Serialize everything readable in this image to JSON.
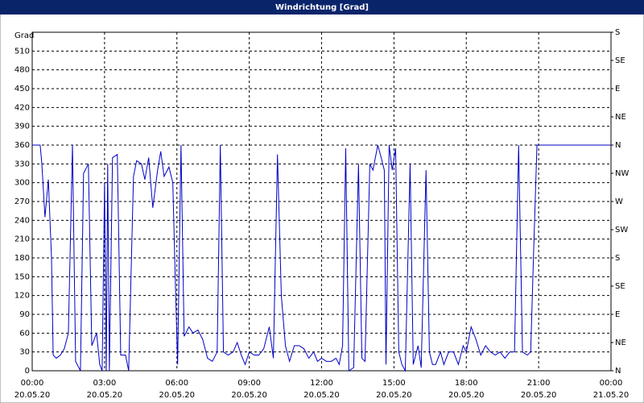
{
  "chart_data": {
    "type": "line",
    "title": "Windrichtung [Grad]",
    "y_label": "Grad",
    "x": [
      0,
      0.33,
      0.4,
      0.53,
      0.67,
      0.8,
      0.87,
      1,
      1.17,
      1.33,
      1.5,
      1.67,
      1.8,
      2,
      2.13,
      2.33,
      2.47,
      2.67,
      2.8,
      2.9,
      3,
      3.07,
      3.13,
      3.2,
      3.33,
      3.53,
      3.67,
      3.87,
      4,
      4.2,
      4.33,
      4.53,
      4.67,
      4.83,
      5,
      5.2,
      5.33,
      5.47,
      5.67,
      5.83,
      5.93,
      6.03,
      6.17,
      6.3,
      6.5,
      6.67,
      6.87,
      7.07,
      7.27,
      7.47,
      7.67,
      7.8,
      7.93,
      8.13,
      8.33,
      8.5,
      8.67,
      8.83,
      9,
      9.2,
      9.4,
      9.6,
      9.83,
      10,
      10.17,
      10.33,
      10.5,
      10.67,
      10.87,
      11.07,
      11.27,
      11.47,
      11.67,
      11.83,
      12,
      12.2,
      12.4,
      12.6,
      12.73,
      12.87,
      13,
      13.13,
      13.33,
      13.53,
      13.67,
      13.8,
      14,
      14.13,
      14.33,
      14.47,
      14.6,
      14.67,
      14.8,
      14.93,
      15.07,
      15.2,
      15.33,
      15.47,
      15.67,
      15.8,
      16,
      16.13,
      16.33,
      16.47,
      16.6,
      16.73,
      16.93,
      17.07,
      17.27,
      17.47,
      17.67,
      17.87,
      18,
      18.2,
      18.4,
      18.6,
      18.8,
      19,
      19.2,
      19.4,
      19.6,
      19.8,
      20,
      20.17,
      20.33,
      20.53,
      20.67,
      20.8,
      20.93,
      24
    ],
    "series": [
      {
        "name": "Windrichtung",
        "color": "#0000c8",
        "values": [
          360,
          360,
          330,
          245,
          305,
          180,
          25,
          20,
          25,
          35,
          60,
          360,
          15,
          0,
          315,
          330,
          40,
          60,
          10,
          0,
          300,
          0,
          330,
          0,
          340,
          345,
          25,
          25,
          0,
          310,
          335,
          330,
          305,
          340,
          260,
          320,
          350,
          310,
          325,
          300,
          150,
          10,
          360,
          55,
          70,
          60,
          65,
          50,
          20,
          15,
          30,
          360,
          30,
          25,
          30,
          45,
          25,
          10,
          30,
          25,
          25,
          35,
          70,
          20,
          345,
          120,
          40,
          15,
          40,
          40,
          35,
          20,
          30,
          15,
          20,
          15,
          15,
          20,
          10,
          40,
          355,
          0,
          5,
          330,
          20,
          15,
          330,
          320,
          360,
          340,
          320,
          10,
          360,
          320,
          355,
          30,
          10,
          0,
          330,
          10,
          40,
          5,
          320,
          30,
          10,
          10,
          30,
          10,
          30,
          30,
          10,
          40,
          30,
          70,
          50,
          25,
          40,
          30,
          25,
          30,
          20,
          30,
          30,
          360,
          30,
          25,
          30,
          200,
          360,
          360
        ]
      }
    ],
    "xlim": [
      0,
      24
    ],
    "xticks": [
      {
        "value": 0,
        "label": "00:00"
      },
      {
        "value": 3,
        "label": "03:00"
      },
      {
        "value": 6,
        "label": "06:00"
      },
      {
        "value": 9,
        "label": "09:00"
      },
      {
        "value": 12,
        "label": "12:00"
      },
      {
        "value": 15,
        "label": "15:00"
      },
      {
        "value": 18,
        "label": "18:00"
      },
      {
        "value": 21,
        "label": "21:00"
      },
      {
        "value": 24,
        "label": "00:00"
      }
    ],
    "xtick_dates": [
      "20.05.20",
      "20.05.20",
      "20.05.20",
      "20.05.20",
      "20.05.20",
      "20.05.20",
      "20.05.20",
      "20.05.20",
      "21.05.20"
    ],
    "ylim": [
      0,
      540
    ],
    "yticks": [
      0,
      30,
      60,
      90,
      120,
      150,
      180,
      210,
      240,
      270,
      300,
      330,
      360,
      390,
      420,
      450,
      480,
      510
    ],
    "y2lim": [
      0,
      540
    ],
    "y2ticks": [
      {
        "value": 0,
        "label": "N"
      },
      {
        "value": 45,
        "label": "NE"
      },
      {
        "value": 90,
        "label": "E"
      },
      {
        "value": 135,
        "label": "SE"
      },
      {
        "value": 180,
        "label": "S"
      },
      {
        "value": 225,
        "label": "SW"
      },
      {
        "value": 270,
        "label": "W"
      },
      {
        "value": 315,
        "label": "NW"
      },
      {
        "value": 360,
        "label": "N"
      },
      {
        "value": 405,
        "label": "NE"
      },
      {
        "value": 450,
        "label": "E"
      },
      {
        "value": 495,
        "label": "SE"
      },
      {
        "value": 540,
        "label": "S"
      }
    ],
    "grid": true
  }
}
